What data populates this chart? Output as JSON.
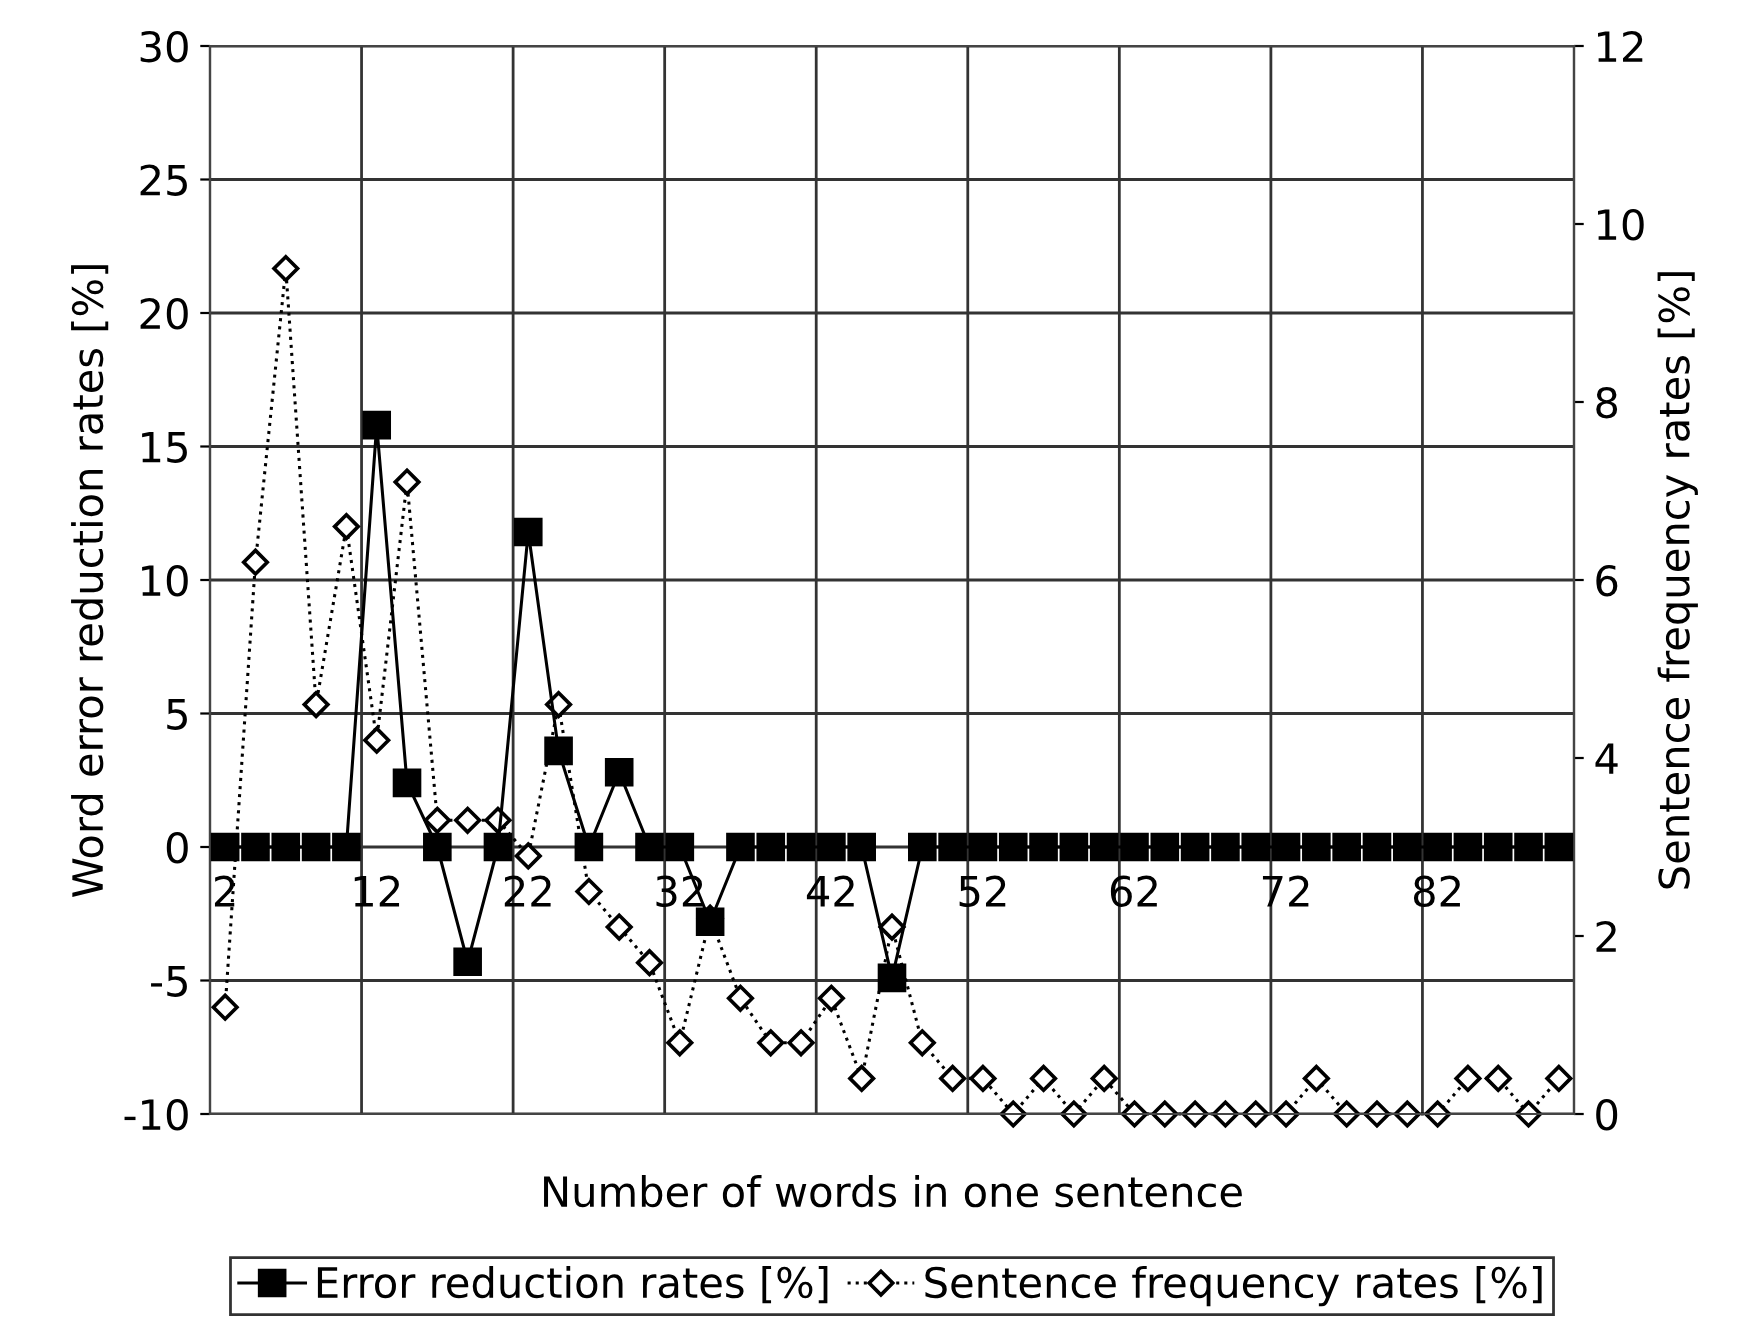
{
  "chart_data": {
    "type": "line",
    "xlabel": "Number of words in one sentence",
    "ylabel": "Word error reduction rates [%]",
    "y2label": "Sentence frequency rates [%]",
    "categories": [
      "2",
      null,
      null,
      null,
      null,
      "12",
      null,
      null,
      null,
      null,
      "22",
      null,
      null,
      null,
      null,
      "32",
      null,
      null,
      null,
      null,
      "42",
      null,
      null,
      null,
      null,
      "52",
      null,
      null,
      null,
      null,
      "62",
      null,
      null,
      null,
      null,
      "72",
      null,
      null,
      null,
      null,
      "82",
      null,
      null,
      null,
      null
    ],
    "series": [
      {
        "name": "Error reduction rates [%]",
        "color": "#000000",
        "marker": "square",
        "line_style": "solid",
        "values": [
          0,
          0,
          0,
          0,
          0,
          15.8,
          2.4,
          0,
          -4.3,
          0,
          11.8,
          3.6,
          0,
          2.8,
          0,
          0,
          -2.8,
          0,
          0,
          0,
          0,
          0,
          -4.9,
          0,
          0,
          0,
          0,
          0,
          0,
          0,
          0,
          0,
          0,
          0,
          0,
          0,
          0,
          0,
          0,
          0,
          0,
          0,
          0,
          0,
          0
        ]
      },
      {
        "name": "Sentence frequency rates [%]",
        "color": "#000000",
        "marker": "diamond",
        "line_style": "dotted",
        "axis": "y2",
        "values": [
          1.2,
          6.2,
          9.5,
          4.6,
          6.6,
          4.2,
          7.1,
          3.3,
          3.3,
          3.3,
          2.9,
          4.6,
          2.5,
          2.1,
          1.7,
          0.8,
          2.2,
          1.3,
          0.8,
          0.8,
          1.3,
          0.4,
          2.1,
          0.8,
          0.4,
          0.4,
          0,
          0.4,
          0,
          0.4,
          0,
          0,
          0,
          0,
          0,
          0,
          0.4,
          0,
          0,
          0,
          0,
          0.4,
          0.4,
          0,
          0.4
        ]
      }
    ],
    "ylim": [
      -10,
      30
    ],
    "yticks": [
      -10,
      -5,
      0,
      5,
      10,
      15,
      20,
      25,
      30
    ],
    "y2lim": [
      0,
      12
    ],
    "y2ticks": [
      0,
      2,
      4,
      6,
      8,
      10,
      12
    ],
    "grid": true,
    "legend": "bottom"
  }
}
